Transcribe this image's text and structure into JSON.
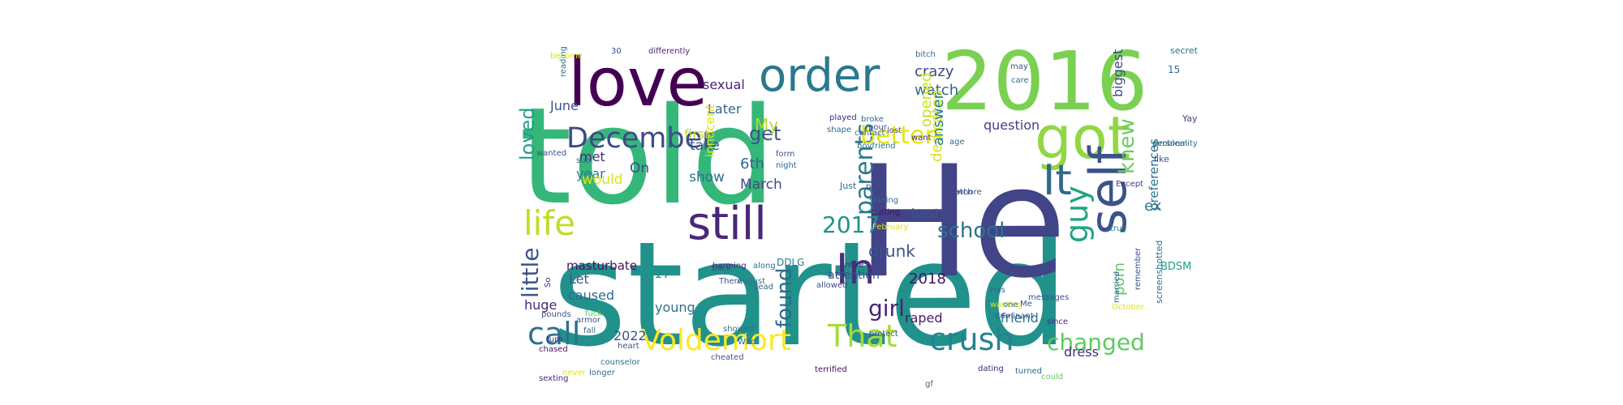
{
  "words": [
    {
      "text": "started",
      "color": "#21918c"
    },
    {
      "text": "told",
      "color": "#35b779"
    },
    {
      "text": "He",
      "color": "#414487"
    },
    {
      "text": "2016",
      "color": "#7ad151"
    },
    {
      "text": "love",
      "color": "#440154"
    },
    {
      "text": "order",
      "color": "#2a788e"
    },
    {
      "text": "got",
      "color": "#90d743"
    },
    {
      "text": "self",
      "color": "#3b528b"
    },
    {
      "text": "It",
      "color": "#31688e"
    },
    {
      "text": "still",
      "color": "#482878"
    },
    {
      "text": "life",
      "color": "#bddf26"
    },
    {
      "text": "December",
      "color": "#3e4989"
    },
    {
      "text": "call",
      "color": "#2c728e"
    },
    {
      "text": "Voldemort",
      "color": "#fde725"
    },
    {
      "text": "That",
      "color": "#a5db36"
    },
    {
      "text": "crush",
      "color": "#26828e"
    },
    {
      "text": "In",
      "color": "#472d7b"
    },
    {
      "text": "guy",
      "color": "#20a486"
    },
    {
      "text": "little",
      "color": "#3b528b"
    },
    {
      "text": "loved",
      "color": "#1fa088"
    },
    {
      "text": "parents",
      "color": "#2a788e"
    },
    {
      "text": "found",
      "color": "#31688e"
    },
    {
      "text": "school",
      "color": "#2c728e"
    },
    {
      "text": "changed",
      "color": "#5ec962"
    },
    {
      "text": "2017",
      "color": "#21918c"
    },
    {
      "text": "better",
      "color": "#e5e419"
    },
    {
      "text": "knew",
      "color": "#6ccd5a"
    },
    {
      "text": "girl",
      "color": "#482475"
    },
    {
      "text": "get",
      "color": "#3b528b"
    },
    {
      "text": "crazy",
      "color": "#3e4989"
    },
    {
      "text": "2018",
      "color": "#471063"
    },
    {
      "text": "drunk",
      "color": "#3b528b"
    },
    {
      "text": "My",
      "color": "#b5de2b"
    },
    {
      "text": "watch",
      "color": "#31688e"
    },
    {
      "text": "ex",
      "color": "#2a788e"
    },
    {
      "text": "porn",
      "color": "#5ec962"
    },
    {
      "text": "dedicated",
      "color": "#d8e219"
    },
    {
      "text": "opened",
      "color": "#cae11f"
    },
    {
      "text": "answer",
      "color": "#27808e"
    },
    {
      "text": "biggest",
      "color": "#3e4989"
    },
    {
      "text": "preferences",
      "color": "#2c728e"
    },
    {
      "text": "question",
      "color": "#433e85"
    },
    {
      "text": "6th",
      "color": "#31688e"
    },
    {
      "text": "March",
      "color": "#3f4889"
    },
    {
      "text": "show",
      "color": "#2c728e"
    },
    {
      "text": "take",
      "color": "#3b528b"
    },
    {
      "text": "first",
      "color": "#b5de2b"
    },
    {
      "text": "met",
      "color": "#482878"
    },
    {
      "text": "year",
      "color": "#2a788e"
    },
    {
      "text": "On",
      "color": "#3e4989"
    },
    {
      "text": "would",
      "color": "#dde318"
    },
    {
      "text": "June",
      "color": "#3b528b"
    },
    {
      "text": "sexual",
      "color": "#482475"
    },
    {
      "text": "Later",
      "color": "#31688e"
    },
    {
      "text": "innocent",
      "color": "#dde318"
    },
    {
      "text": "best",
      "color": "#3b528b"
    },
    {
      "text": "raped",
      "color": "#481a6c"
    },
    {
      "text": "friend",
      "color": "#2c728e"
    },
    {
      "text": "dress",
      "color": "#482878"
    },
    {
      "text": "caused",
      "color": "#31688e"
    },
    {
      "text": "17",
      "color": "#21918c"
    },
    {
      "text": "young",
      "color": "#2c728e"
    },
    {
      "text": "Let",
      "color": "#3b528b"
    },
    {
      "text": "huge",
      "color": "#482878"
    },
    {
      "text": "2022",
      "color": "#3b528b"
    },
    {
      "text": "masturbate",
      "color": "#471063"
    },
    {
      "text": "attention",
      "color": "#3e4989"
    },
    {
      "text": "DDLG",
      "color": "#2a788e"
    },
    {
      "text": "BDSM",
      "color": "#1fa088"
    },
    {
      "text": "screenshotted",
      "color": "#2c728e"
    },
    {
      "text": "differently",
      "color": "#482878"
    },
    {
      "text": "reading",
      "color": "#2c728e"
    },
    {
      "text": "become",
      "color": "#dde318"
    },
    {
      "text": "30",
      "color": "#3b528b"
    },
    {
      "text": "bitch",
      "color": "#31688e"
    },
    {
      "text": "secret",
      "color": "#2c728e"
    },
    {
      "text": "15",
      "color": "#31688e"
    },
    {
      "text": "Yay",
      "color": "#433e85"
    },
    {
      "text": "personality",
      "color": "#2c728e"
    },
    {
      "text": "problem",
      "color": "#31688e"
    },
    {
      "text": "like",
      "color": "#3b528b"
    },
    {
      "text": "Except",
      "color": "#433e85"
    },
    {
      "text": "true",
      "color": "#2a788e"
    },
    {
      "text": "match",
      "color": "#3e4989"
    },
    {
      "text": "whore",
      "color": "#3b528b"
    },
    {
      "text": "shape",
      "color": "#31688e"
    },
    {
      "text": "played",
      "color": "#482878"
    },
    {
      "text": "Just",
      "color": "#31688e"
    },
    {
      "text": "point",
      "color": "#3e4989"
    },
    {
      "text": "shining",
      "color": "#2c728e"
    },
    {
      "text": "putting",
      "color": "#471063"
    },
    {
      "text": "night",
      "color": "#31688e"
    },
    {
      "text": "form",
      "color": "#3b528b"
    },
    {
      "text": "broke",
      "color": "#31688e"
    },
    {
      "text": "pour",
      "color": "#3e4989"
    },
    {
      "text": "sub",
      "color": "#2c728e"
    },
    {
      "text": "wanted",
      "color": "#3b528b"
    },
    {
      "text": "turn",
      "color": "#482878"
    },
    {
      "text": "pounds",
      "color": "#3b528b"
    },
    {
      "text": "fuck",
      "color": "#5ec962"
    },
    {
      "text": "armor",
      "color": "#3b528b"
    },
    {
      "text": "fall",
      "color": "#31688e"
    },
    {
      "text": "chased",
      "color": "#471063"
    },
    {
      "text": "showed",
      "color": "#2c728e"
    },
    {
      "text": "cheated",
      "color": "#3b528b"
    },
    {
      "text": "Who",
      "color": "#31688e"
    },
    {
      "text": "protect",
      "color": "#3e4989"
    },
    {
      "text": "dating",
      "color": "#482878"
    },
    {
      "text": "turned",
      "color": "#31688e"
    },
    {
      "text": "could",
      "color": "#5ec962"
    },
    {
      "text": "terrified",
      "color": "#471063"
    },
    {
      "text": "counselor",
      "color": "#2c728e"
    },
    {
      "text": "heart",
      "color": "#3b528b"
    },
    {
      "text": "never",
      "color": "#dde318"
    },
    {
      "text": "longer",
      "color": "#31688e"
    },
    {
      "text": "sexting",
      "color": "#482878"
    },
    {
      "text": "wanting",
      "color": "#dde318"
    },
    {
      "text": "dominant",
      "color": "#3b528b"
    },
    {
      "text": "married",
      "color": "#31688e"
    },
    {
      "text": "harming",
      "color": "#482878"
    },
    {
      "text": "back",
      "color": "#3e4989"
    },
    {
      "text": "along",
      "color": "#31688e"
    },
    {
      "text": "August",
      "color": "#2c728e"
    },
    {
      "text": "There",
      "color": "#3b528b"
    },
    {
      "text": "dead",
      "color": "#31688e"
    },
    {
      "text": "allowed",
      "color": "#3e4989"
    },
    {
      "text": "entire",
      "color": "#482878"
    },
    {
      "text": "February",
      "color": "#dde318"
    },
    {
      "text": "boyfriend",
      "color": "#2c728e"
    },
    {
      "text": "contact",
      "color": "#31688e"
    },
    {
      "text": "lost",
      "color": "#3b528b"
    },
    {
      "text": "want",
      "color": "#482878"
    },
    {
      "text": "care",
      "color": "#31688e"
    },
    {
      "text": "may",
      "color": "#3b528b"
    },
    {
      "text": "one",
      "color": "#2c728e"
    },
    {
      "text": "Has",
      "color": "#31688e"
    },
    {
      "text": "October",
      "color": "#dde318"
    },
    {
      "text": "remember",
      "color": "#3b528b"
    },
    {
      "text": "gf",
      "color": "#31688e"
    },
    {
      "text": "So",
      "color": "#482878"
    },
    {
      "text": "Me",
      "color": "#3b528b"
    },
    {
      "text": "age",
      "color": "#31688e"
    },
    {
      "text": "since",
      "color": "#482878"
    },
    {
      "text": "messages",
      "color": "#3b528b"
    }
  ]
}
